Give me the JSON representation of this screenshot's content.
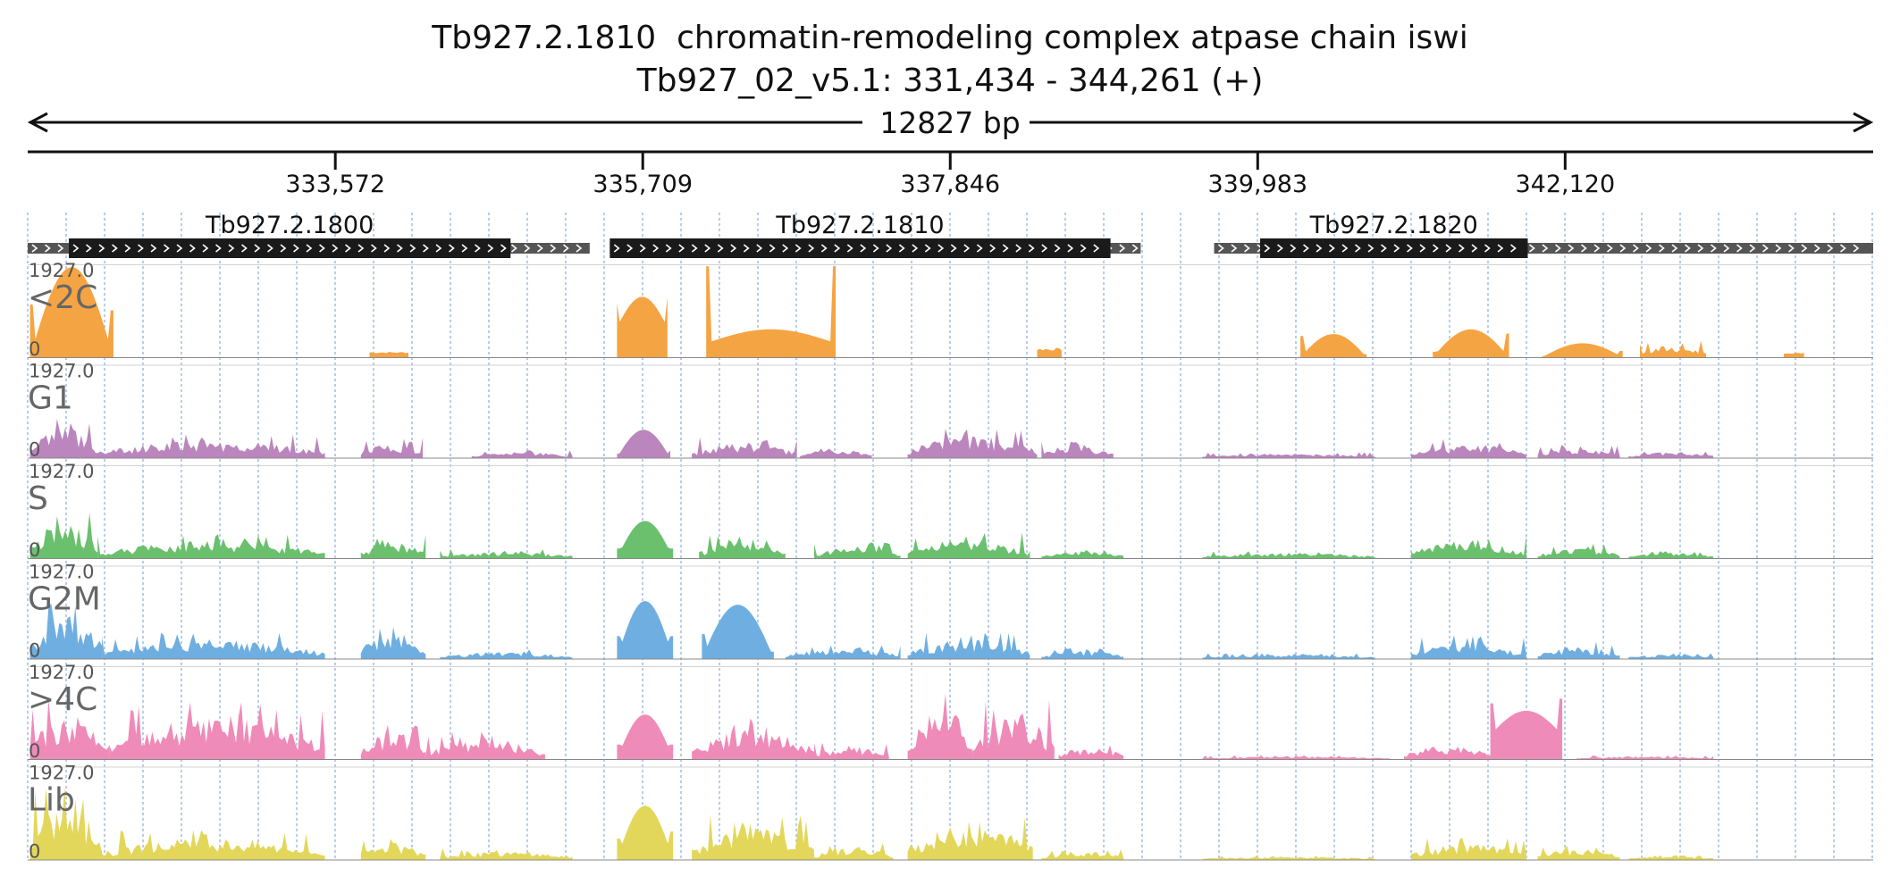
{
  "header": {
    "title": "Tb927.2.1810  chromatin-remodeling complex atpase chain iswi",
    "subtitle": "Tb927_02_v5.1: 331,434 - 344,261 (+)"
  },
  "chart_data": {
    "type": "area",
    "region": {
      "chrom": "Tb927_02_v5.1",
      "start": 331434,
      "end": 344261,
      "strand": "+",
      "span_label": "12827 bp"
    },
    "x_ticks": [
      333572,
      335709,
      337846,
      339983,
      342120
    ],
    "x_tick_labels": [
      "333,572",
      "335,709",
      "337,846",
      "339,983",
      "342,120"
    ],
    "gridline_spacing_bp": 267.1,
    "genes": [
      {
        "name": "Tb927.2.1800",
        "utr_start": 331434,
        "cds_start": 331720,
        "cds_end": 334790,
        "utr_end": 335340
      },
      {
        "name": "Tb927.2.1810",
        "utr_start": 335480,
        "cds_start": 335480,
        "cds_end": 338960,
        "utr_end": 339170
      },
      {
        "name": "Tb927.2.1820",
        "utr_start": 339680,
        "cds_start": 340000,
        "cds_end": 341860,
        "utr_end": 344261
      }
    ],
    "tracks": [
      {
        "name": "<2C",
        "color": "#F5A443",
        "ymax_label": "1927.0",
        "ymin_label": "0",
        "segments": [
          {
            "start": 331450,
            "end": 332030,
            "peak": 0.97,
            "shape": "hump",
            "left": 0.45,
            "right": 0.4
          },
          {
            "start": 333810,
            "end": 334080,
            "peak": 0.06,
            "shape": "flat"
          },
          {
            "start": 335530,
            "end": 335880,
            "peak": 0.65,
            "shape": "valley",
            "left": 0.58,
            "right": 0.65
          },
          {
            "start": 336150,
            "end": 337050,
            "peak": 0.3,
            "shape": "valley",
            "left": 0.98,
            "right": 0.98
          },
          {
            "start": 338450,
            "end": 338620,
            "peak": 0.1,
            "shape": "flat"
          },
          {
            "start": 340280,
            "end": 340740,
            "peak": 0.25,
            "shape": "hump",
            "left": 0.7,
            "right": 0.1
          },
          {
            "start": 341200,
            "end": 341730,
            "peak": 0.3,
            "shape": "hump",
            "left": 0.15,
            "right": 0.65
          },
          {
            "start": 341960,
            "end": 342520,
            "peak": 0.15,
            "shape": "hump",
            "left": 0.05,
            "right": 0.35
          },
          {
            "start": 342640,
            "end": 343100,
            "peak": 0.18,
            "shape": "noisy"
          },
          {
            "start": 343640,
            "end": 343780,
            "peak": 0.05,
            "shape": "flat"
          }
        ]
      },
      {
        "name": "G1",
        "color": "#BB85BD",
        "ymax_label": "1927.0",
        "ymin_label": "0",
        "segments": [
          {
            "start": 331450,
            "end": 331900,
            "peak": 0.45,
            "shape": "noisy"
          },
          {
            "start": 331900,
            "end": 333500,
            "peak": 0.25,
            "shape": "noisy"
          },
          {
            "start": 333750,
            "end": 334180,
            "peak": 0.22,
            "shape": "noisy"
          },
          {
            "start": 334520,
            "end": 335220,
            "peak": 0.08,
            "shape": "noisy"
          },
          {
            "start": 335530,
            "end": 335900,
            "peak": 0.3,
            "shape": "hump",
            "left": 0.1,
            "right": 0.2
          },
          {
            "start": 336050,
            "end": 336780,
            "peak": 0.22,
            "shape": "noisy"
          },
          {
            "start": 336800,
            "end": 337300,
            "peak": 0.12,
            "shape": "noisy"
          },
          {
            "start": 337550,
            "end": 338450,
            "peak": 0.32,
            "shape": "noisy"
          },
          {
            "start": 338480,
            "end": 338980,
            "peak": 0.2,
            "shape": "noisy"
          },
          {
            "start": 339600,
            "end": 340800,
            "peak": 0.06,
            "shape": "noisy"
          },
          {
            "start": 341050,
            "end": 341850,
            "peak": 0.2,
            "shape": "noisy"
          },
          {
            "start": 341930,
            "end": 342500,
            "peak": 0.14,
            "shape": "noisy"
          },
          {
            "start": 342560,
            "end": 343150,
            "peak": 0.08,
            "shape": "noisy"
          }
        ]
      },
      {
        "name": "S",
        "color": "#6BC06E",
        "ymax_label": "1927.0",
        "ymin_label": "0",
        "segments": [
          {
            "start": 331450,
            "end": 331920,
            "peak": 0.52,
            "shape": "noisy"
          },
          {
            "start": 331920,
            "end": 333500,
            "peak": 0.26,
            "shape": "noisy"
          },
          {
            "start": 333750,
            "end": 334200,
            "peak": 0.26,
            "shape": "noisy"
          },
          {
            "start": 334300,
            "end": 335220,
            "peak": 0.1,
            "shape": "noisy"
          },
          {
            "start": 335530,
            "end": 335920,
            "peak": 0.4,
            "shape": "hump",
            "left": 0.2,
            "right": 0.2
          },
          {
            "start": 336100,
            "end": 336700,
            "peak": 0.25,
            "shape": "noisy"
          },
          {
            "start": 336900,
            "end": 337500,
            "peak": 0.18,
            "shape": "noisy"
          },
          {
            "start": 337550,
            "end": 338400,
            "peak": 0.28,
            "shape": "noisy"
          },
          {
            "start": 338480,
            "end": 339050,
            "peak": 0.1,
            "shape": "noisy"
          },
          {
            "start": 339600,
            "end": 340800,
            "peak": 0.08,
            "shape": "noisy"
          },
          {
            "start": 341050,
            "end": 341850,
            "peak": 0.26,
            "shape": "noisy"
          },
          {
            "start": 341930,
            "end": 342500,
            "peak": 0.16,
            "shape": "noisy"
          },
          {
            "start": 342560,
            "end": 343150,
            "peak": 0.08,
            "shape": "noisy"
          }
        ]
      },
      {
        "name": "G2M",
        "color": "#6FAEE0",
        "ymax_label": "1927.0",
        "ymin_label": "0",
        "segments": [
          {
            "start": 331450,
            "end": 331950,
            "peak": 0.6,
            "shape": "noisy"
          },
          {
            "start": 331950,
            "end": 333500,
            "peak": 0.28,
            "shape": "noisy"
          },
          {
            "start": 333750,
            "end": 334200,
            "peak": 0.4,
            "shape": "noisy"
          },
          {
            "start": 334300,
            "end": 335220,
            "peak": 0.1,
            "shape": "noisy"
          },
          {
            "start": 335530,
            "end": 335920,
            "peak": 0.62,
            "shape": "hump",
            "left": 0.3,
            "right": 0.3
          },
          {
            "start": 336120,
            "end": 336620,
            "peak": 0.58,
            "shape": "hump",
            "left": 0.35,
            "right": 0.1
          },
          {
            "start": 336700,
            "end": 337500,
            "peak": 0.16,
            "shape": "noisy"
          },
          {
            "start": 337550,
            "end": 338400,
            "peak": 0.28,
            "shape": "noisy"
          },
          {
            "start": 338480,
            "end": 339050,
            "peak": 0.12,
            "shape": "noisy"
          },
          {
            "start": 339600,
            "end": 340800,
            "peak": 0.06,
            "shape": "noisy"
          },
          {
            "start": 341050,
            "end": 341850,
            "peak": 0.26,
            "shape": "noisy"
          },
          {
            "start": 341930,
            "end": 342500,
            "peak": 0.18,
            "shape": "noisy"
          },
          {
            "start": 342560,
            "end": 343150,
            "peak": 0.06,
            "shape": "noisy"
          }
        ]
      },
      {
        "name": ">4C",
        "color": "#EF8BB9",
        "ymax_label": "1927.0",
        "ymin_label": "0",
        "segments": [
          {
            "start": 331450,
            "end": 332000,
            "peak": 0.65,
            "shape": "noisy"
          },
          {
            "start": 332000,
            "end": 333500,
            "peak": 0.62,
            "shape": "noisy"
          },
          {
            "start": 333750,
            "end": 334200,
            "peak": 0.4,
            "shape": "noisy"
          },
          {
            "start": 334200,
            "end": 335030,
            "peak": 0.3,
            "shape": "noisy"
          },
          {
            "start": 335530,
            "end": 335920,
            "peak": 0.48,
            "shape": "hump",
            "left": 0.25,
            "right": 0.25
          },
          {
            "start": 336050,
            "end": 336900,
            "peak": 0.45,
            "shape": "noisy"
          },
          {
            "start": 336900,
            "end": 337420,
            "peak": 0.18,
            "shape": "noisy"
          },
          {
            "start": 337550,
            "end": 338000,
            "peak": 0.8,
            "shape": "noisy"
          },
          {
            "start": 338000,
            "end": 338570,
            "peak": 0.65,
            "shape": "noisy"
          },
          {
            "start": 338600,
            "end": 339050,
            "peak": 0.18,
            "shape": "noisy"
          },
          {
            "start": 339600,
            "end": 340900,
            "peak": 0.04,
            "shape": "noisy"
          },
          {
            "start": 341000,
            "end": 341600,
            "peak": 0.2,
            "shape": "noisy"
          },
          {
            "start": 341600,
            "end": 342100,
            "peak": 0.52,
            "shape": "valley",
            "left": 0.6,
            "right": 0.65
          },
          {
            "start": 342200,
            "end": 343150,
            "peak": 0.04,
            "shape": "noisy"
          }
        ]
      },
      {
        "name": "Lib",
        "color": "#E3D75B",
        "ymax_label": "1927.0",
        "ymin_label": "0",
        "segments": [
          {
            "start": 331450,
            "end": 331950,
            "peak": 0.82,
            "shape": "noisy"
          },
          {
            "start": 331950,
            "end": 333500,
            "peak": 0.32,
            "shape": "noisy"
          },
          {
            "start": 333750,
            "end": 334200,
            "peak": 0.24,
            "shape": "noisy"
          },
          {
            "start": 334300,
            "end": 335220,
            "peak": 0.12,
            "shape": "noisy"
          },
          {
            "start": 335530,
            "end": 335920,
            "peak": 0.58,
            "shape": "hump",
            "left": 0.3,
            "right": 0.4
          },
          {
            "start": 336050,
            "end": 336900,
            "peak": 0.48,
            "shape": "noisy"
          },
          {
            "start": 336900,
            "end": 337450,
            "peak": 0.18,
            "shape": "noisy"
          },
          {
            "start": 337550,
            "end": 338420,
            "peak": 0.52,
            "shape": "noisy"
          },
          {
            "start": 338480,
            "end": 339050,
            "peak": 0.12,
            "shape": "noisy"
          },
          {
            "start": 339600,
            "end": 340800,
            "peak": 0.04,
            "shape": "noisy"
          },
          {
            "start": 341050,
            "end": 341850,
            "peak": 0.24,
            "shape": "noisy"
          },
          {
            "start": 341930,
            "end": 342500,
            "peak": 0.16,
            "shape": "noisy"
          },
          {
            "start": 342560,
            "end": 343150,
            "peak": 0.05,
            "shape": "noisy"
          }
        ]
      }
    ]
  }
}
